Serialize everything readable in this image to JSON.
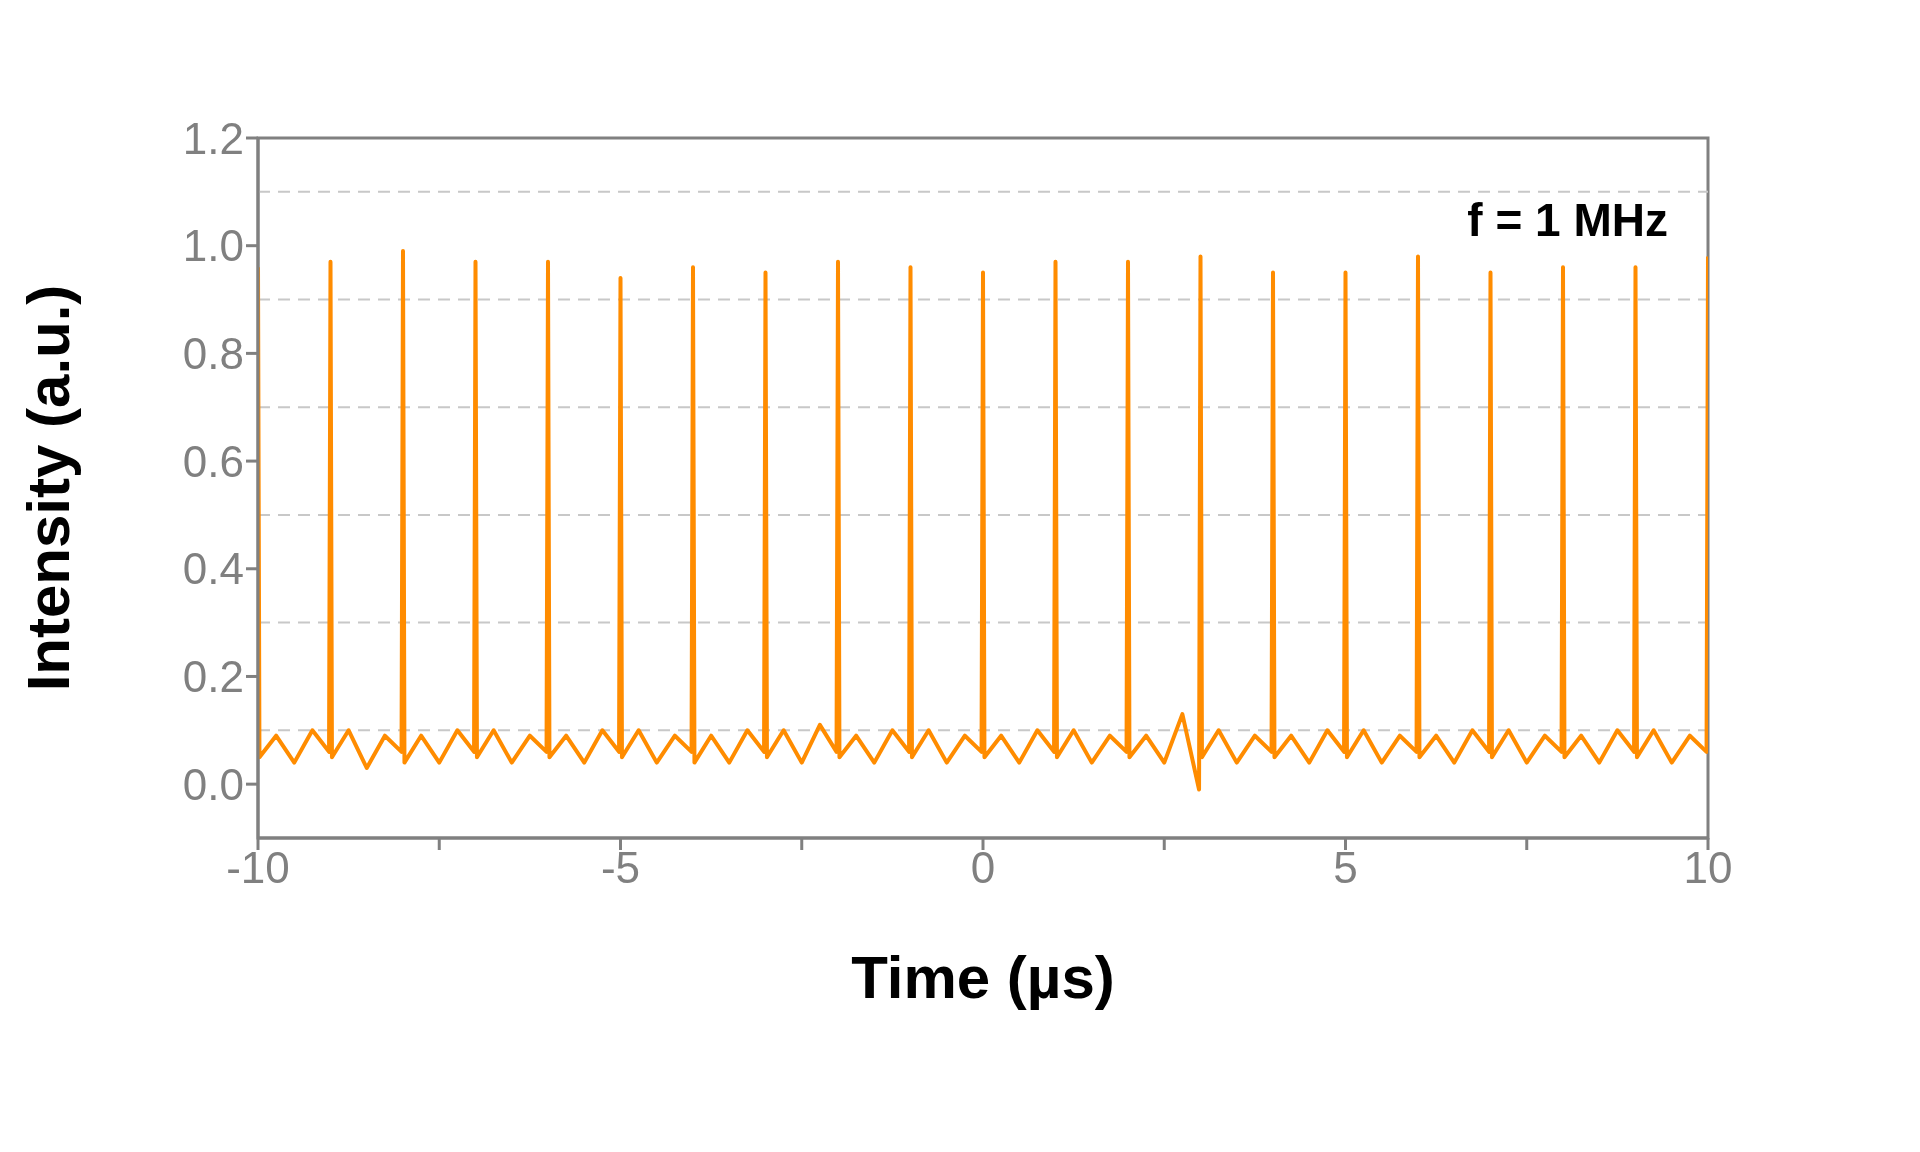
{
  "chart_data": {
    "type": "line",
    "xlabel": "Time (µs)",
    "ylabel": "Intensity (a.u.)",
    "annotations": [
      "f = 1 MHz"
    ],
    "color": "#ff8c00",
    "line_style": "solid",
    "xlim": [
      -10,
      10
    ],
    "ylim": [
      -0.1,
      1.2
    ],
    "xticks": [
      -10,
      {
        "value": -7.5,
        "label": null
      },
      -5,
      {
        "value": -2.5,
        "label": null
      },
      0,
      {
        "value": 2.5,
        "label": null
      },
      5,
      {
        "value": 7.5,
        "label": null
      },
      10
    ],
    "yticks": [
      {
        "value": 0,
        "label": "0.0"
      },
      0.2,
      0.4,
      0.6,
      0.8,
      {
        "value": 1,
        "label": "1.0"
      },
      1.2
    ],
    "ref_lines": [
      {
        "axis": "y",
        "value": 0.1,
        "color": "#c8c8c8",
        "line_style": "dashed"
      },
      {
        "axis": "y",
        "value": 0.3,
        "color": "#c8c8c8",
        "line_style": "dashed"
      },
      {
        "axis": "y",
        "value": 0.5,
        "color": "#c8c8c8",
        "line_style": "dashed"
      },
      {
        "axis": "y",
        "value": 0.7,
        "color": "#c8c8c8",
        "line_style": "dashed"
      },
      {
        "axis": "y",
        "value": 0.9,
        "color": "#c8c8c8",
        "line_style": "dashed"
      },
      {
        "axis": "y",
        "value": 1.1,
        "color": "#c8c8c8",
        "line_style": "dashed"
      }
    ],
    "x": [
      -10,
      -9.98,
      -9.75,
      -9.5,
      -9.25,
      -9.02,
      -9,
      -8.98,
      -8.75,
      -8.5,
      -8.25,
      -8.02,
      -8,
      -7.98,
      -7.75,
      -7.5,
      -7.25,
      -7.02,
      -7,
      -6.98,
      -6.75,
      -6.5,
      -6.25,
      -6.02,
      -6,
      -5.98,
      -5.75,
      -5.5,
      -5.25,
      -5.02,
      -5,
      -4.98,
      -4.75,
      -4.5,
      -4.25,
      -4.02,
      -4,
      -3.98,
      -3.75,
      -3.5,
      -3.25,
      -3.02,
      -3,
      -2.98,
      -2.75,
      -2.5,
      -2.25,
      -2.02,
      -2,
      -1.98,
      -1.75,
      -1.5,
      -1.25,
      -1.02,
      -1,
      -0.98,
      -0.75,
      -0.5,
      -0.25,
      -0.02,
      0,
      0.02,
      0.25,
      0.5,
      0.75,
      0.98,
      1,
      1.02,
      1.25,
      1.5,
      1.75,
      1.98,
      2,
      2.02,
      2.25,
      2.5,
      2.75,
      2.98,
      3,
      3.02,
      3.25,
      3.5,
      3.75,
      3.98,
      4,
      4.02,
      4.25,
      4.5,
      4.75,
      4.98,
      5,
      5.02,
      5.25,
      5.5,
      5.75,
      5.98,
      6,
      6.02,
      6.25,
      6.5,
      6.75,
      6.98,
      7,
      7.02,
      7.25,
      7.5,
      7.75,
      7.98,
      8,
      8.02,
      8.25,
      8.5,
      8.75,
      8.98,
      9,
      9.02,
      9.25,
      9.5,
      9.75,
      9.98,
      10
    ],
    "values": [
      0.96,
      0.05,
      0.09,
      0.04,
      0.1,
      0.06,
      0.97,
      0.05,
      0.1,
      0.03,
      0.09,
      0.06,
      0.99,
      0.04,
      0.09,
      0.04,
      0.1,
      0.06,
      0.97,
      0.05,
      0.1,
      0.04,
      0.09,
      0.06,
      0.97,
      0.05,
      0.09,
      0.04,
      0.1,
      0.06,
      0.94,
      0.05,
      0.1,
      0.04,
      0.09,
      0.06,
      0.96,
      0.04,
      0.09,
      0.04,
      0.1,
      0.06,
      0.95,
      0.05,
      0.1,
      0.04,
      0.11,
      0.06,
      0.97,
      0.05,
      0.09,
      0.04,
      0.1,
      0.06,
      0.96,
      0.05,
      0.1,
      0.04,
      0.09,
      0.06,
      0.95,
      0.05,
      0.09,
      0.04,
      0.1,
      0.06,
      0.97,
      0.05,
      0.1,
      0.04,
      0.09,
      0.06,
      0.97,
      0.05,
      0.09,
      0.04,
      0.13,
      -0.01,
      0.98,
      0.05,
      0.1,
      0.04,
      0.09,
      0.06,
      0.95,
      0.05,
      0.09,
      0.04,
      0.1,
      0.06,
      0.95,
      0.05,
      0.1,
      0.04,
      0.09,
      0.06,
      0.98,
      0.05,
      0.09,
      0.04,
      0.1,
      0.06,
      0.95,
      0.05,
      0.1,
      0.04,
      0.09,
      0.06,
      0.96,
      0.05,
      0.09,
      0.04,
      0.1,
      0.06,
      0.96,
      0.05,
      0.1,
      0.04,
      0.09,
      0.06,
      0.98
    ]
  }
}
